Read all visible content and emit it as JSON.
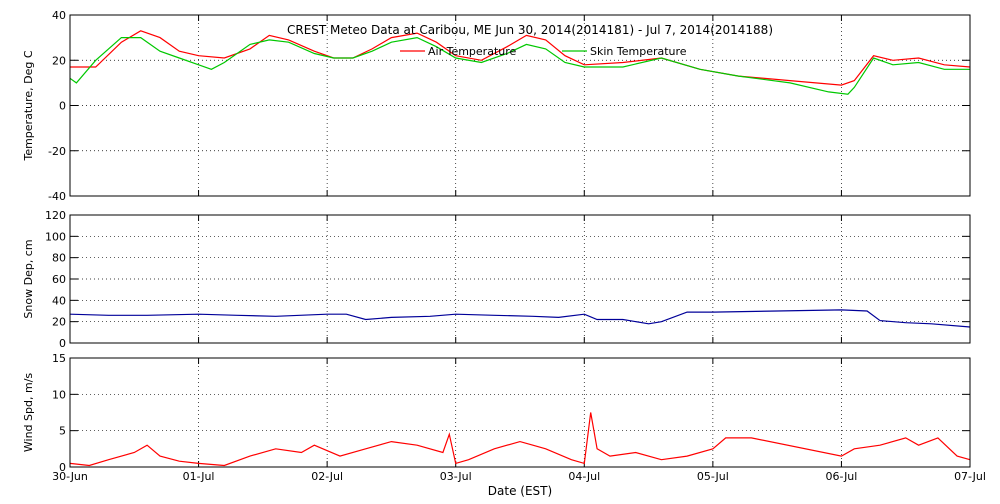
{
  "title": "CREST Meteo Data at Caribou, ME   Jun 30, 2014(2014181) - Jul  7, 2014(2014188)",
  "xlabel": "Date (EST)",
  "x_ticks": [
    "30-Jun",
    "01-Jul",
    "02-Jul",
    "03-Jul",
    "04-Jul",
    "05-Jul",
    "06-Jul",
    "07-Jul"
  ],
  "colors": {
    "air": "#ff0000",
    "skin": "#00c800",
    "snow": "#000099",
    "wind": "#ff0000"
  },
  "chart_data": [
    {
      "type": "line",
      "ylabel": "Temperature, Deg C",
      "ylim": [
        -40,
        40
      ],
      "y_ticks": [
        "-40",
        "-20",
        "0",
        "20",
        "40"
      ],
      "xlim": [
        0,
        7
      ],
      "legend": "top-center",
      "grid": true,
      "series": [
        {
          "name": "Air Temperature",
          "x": [
            0,
            0.2,
            0.4,
            0.55,
            0.7,
            0.85,
            1.0,
            1.2,
            1.4,
            1.55,
            1.7,
            1.9,
            2.05,
            2.2,
            2.35,
            2.5,
            2.7,
            2.85,
            3.0,
            3.2,
            3.4,
            3.55,
            3.7,
            3.85,
            4.0,
            4.3,
            4.6,
            4.9,
            5.2,
            5.6,
            6.0,
            6.1,
            6.25,
            6.4,
            6.6,
            6.8,
            7.0
          ],
          "y": [
            17,
            17,
            28,
            33,
            30,
            24,
            22,
            21,
            25,
            31,
            29,
            24,
            21,
            21,
            25,
            30,
            32,
            28,
            22,
            20,
            26,
            31,
            29,
            22,
            18,
            19,
            21,
            16,
            13,
            11,
            9,
            11,
            22,
            20,
            21,
            18,
            17
          ]
        },
        {
          "name": "Skin Temperature",
          "x": [
            0,
            0.05,
            0.2,
            0.4,
            0.55,
            0.7,
            0.85,
            1.0,
            1.1,
            1.2,
            1.4,
            1.55,
            1.7,
            1.9,
            2.05,
            2.2,
            2.35,
            2.5,
            2.7,
            2.85,
            3.0,
            3.2,
            3.4,
            3.55,
            3.7,
            3.85,
            4.0,
            4.3,
            4.6,
            4.9,
            5.2,
            5.6,
            5.9,
            6.05,
            6.1,
            6.25,
            6.4,
            6.6,
            6.8,
            7.0
          ],
          "y": [
            12,
            10,
            20,
            30,
            30,
            24,
            21,
            18,
            16,
            19,
            27,
            29,
            28,
            23,
            21,
            21,
            24,
            28,
            30,
            26,
            21,
            19,
            23,
            27,
            25,
            19,
            17,
            17,
            21,
            16,
            13,
            10,
            6,
            5,
            8,
            21,
            18,
            19,
            16,
            16
          ]
        }
      ]
    },
    {
      "type": "line",
      "ylabel": "Snow Dep, cm",
      "ylim": [
        0,
        120
      ],
      "y_ticks": [
        "0",
        "20",
        "40",
        "60",
        "80",
        "100",
        "120"
      ],
      "xlim": [
        0,
        7
      ],
      "grid": true,
      "series": [
        {
          "name": "",
          "x": [
            0,
            0.3,
            0.6,
            1.0,
            1.3,
            1.6,
            2.0,
            2.15,
            2.3,
            2.5,
            2.8,
            3.0,
            3.3,
            3.6,
            3.8,
            4.0,
            4.1,
            4.3,
            4.5,
            4.6,
            4.8,
            5.0,
            5.5,
            6.0,
            6.2,
            6.3,
            6.5,
            6.7,
            7.0
          ],
          "y": [
            27,
            26,
            26,
            27,
            26,
            25,
            27,
            27,
            22,
            24,
            25,
            27,
            26,
            25,
            24,
            27,
            22,
            22,
            18,
            20,
            29,
            29,
            30,
            31,
            30,
            21,
            19,
            18,
            15
          ]
        }
      ]
    },
    {
      "type": "line",
      "ylabel": "Wind Spd, m/s",
      "ylim": [
        0,
        15
      ],
      "y_ticks": [
        "0",
        "5",
        "10",
        "15"
      ],
      "xlim": [
        0,
        7
      ],
      "grid": true,
      "series": [
        {
          "name": "",
          "x": [
            0,
            0.15,
            0.3,
            0.5,
            0.6,
            0.7,
            0.85,
            1.0,
            1.2,
            1.4,
            1.6,
            1.8,
            1.9,
            2.1,
            2.3,
            2.5,
            2.7,
            2.9,
            2.95,
            3.0,
            3.1,
            3.3,
            3.5,
            3.6,
            3.7,
            3.9,
            4.0,
            4.05,
            4.1,
            4.2,
            4.4,
            4.6,
            4.8,
            5.0,
            5.1,
            5.3,
            6.0,
            6.1,
            6.3,
            6.5,
            6.6,
            6.75,
            6.9,
            7.0
          ],
          "y": [
            0.5,
            0.2,
            1.0,
            2.0,
            3.0,
            1.5,
            0.8,
            0.5,
            0.2,
            1.5,
            2.5,
            2.0,
            3.0,
            1.5,
            2.5,
            3.5,
            3.0,
            2.0,
            4.5,
            0.5,
            1.0,
            2.5,
            3.5,
            3.0,
            2.5,
            1.0,
            0.5,
            7.5,
            2.5,
            1.5,
            2.0,
            1.0,
            1.5,
            2.5,
            4.0,
            4.0,
            1.5,
            2.5,
            3.0,
            4.0,
            3.0,
            4.0,
            1.5,
            1.0
          ]
        }
      ]
    }
  ]
}
